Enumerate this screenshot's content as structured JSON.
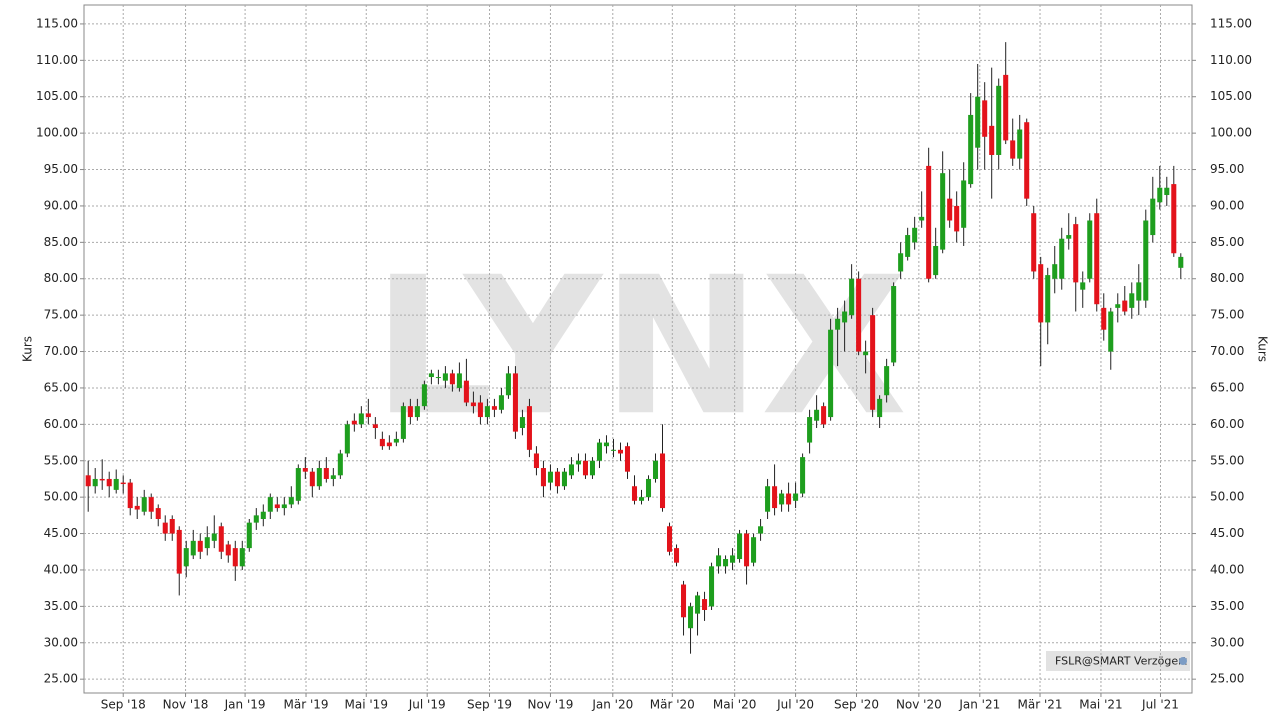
{
  "chart_data": {
    "type": "candlestick",
    "y_label": "Kurs",
    "watermark": "LYNX",
    "source_label": "FSLR@SMART Verzögert",
    "up_color": "#1e9e1e",
    "down_color": "#e3131b",
    "grid": true,
    "ylim": [
      23.1,
      117.6
    ],
    "yticks": [
      {
        "value": 25,
        "label": "25.00"
      },
      {
        "value": 30,
        "label": "30.00"
      },
      {
        "value": 35,
        "label": "35.00"
      },
      {
        "value": 40,
        "label": "40.00"
      },
      {
        "value": 45,
        "label": "45.00"
      },
      {
        "value": 50,
        "label": "50.00"
      },
      {
        "value": 55,
        "label": "55.00"
      },
      {
        "value": 60,
        "label": "60.00"
      },
      {
        "value": 65,
        "label": "65.00"
      },
      {
        "value": 70,
        "label": "70.00"
      },
      {
        "value": 75,
        "label": "75.00"
      },
      {
        "value": 80,
        "label": "80.00"
      },
      {
        "value": 85,
        "label": "85.00"
      },
      {
        "value": 90,
        "label": "90.00"
      },
      {
        "value": 95,
        "label": "95.00"
      },
      {
        "value": 100,
        "label": "100.00"
      },
      {
        "value": 105,
        "label": "105.00"
      },
      {
        "value": 110,
        "label": "110.00"
      },
      {
        "value": 115,
        "label": "115.00"
      }
    ],
    "xlim": [
      -0.6,
      157.6
    ],
    "xticks": [
      {
        "value": 5,
        "label": "Sep '18"
      },
      {
        "value": 13.9,
        "label": "Nov '18"
      },
      {
        "value": 22.4,
        "label": "Jan '19"
      },
      {
        "value": 31.1,
        "label": "Mär '19"
      },
      {
        "value": 39.7,
        "label": "Mai '19"
      },
      {
        "value": 48.4,
        "label": "Jul '19"
      },
      {
        "value": 57.3,
        "label": "Sep '19"
      },
      {
        "value": 66,
        "label": "Nov '19"
      },
      {
        "value": 74.9,
        "label": "Jan '20"
      },
      {
        "value": 83.4,
        "label": "Mär '20"
      },
      {
        "value": 92.3,
        "label": "Mai '20"
      },
      {
        "value": 101,
        "label": "Jul '20"
      },
      {
        "value": 109.7,
        "label": "Sep '20"
      },
      {
        "value": 118.6,
        "label": "Nov '20"
      },
      {
        "value": 127.3,
        "label": "Jan '21"
      },
      {
        "value": 135.9,
        "label": "Mär '21"
      },
      {
        "value": 144.6,
        "label": "Mai '21"
      },
      {
        "value": 153.1,
        "label": "Jul '21"
      }
    ],
    "ohlc": [
      [
        53,
        55,
        48,
        51.5
      ],
      [
        51.5,
        54,
        50.5,
        52.5
      ],
      [
        52.5,
        55.2,
        51,
        52.3
      ],
      [
        52.5,
        53.5,
        50,
        51.5
      ],
      [
        51,
        53.8,
        50.5,
        52.5
      ],
      [
        52,
        53,
        50.5,
        51.8
      ],
      [
        52,
        52.5,
        47.5,
        48.5
      ],
      [
        48.8,
        50,
        47,
        48.3
      ],
      [
        48,
        51,
        47.5,
        50
      ],
      [
        50,
        50.5,
        47,
        48
      ],
      [
        48.5,
        49,
        46,
        47
      ],
      [
        46.5,
        47.5,
        44,
        45
      ],
      [
        47,
        47.5,
        44,
        45
      ],
      [
        45.5,
        46,
        36.5,
        39.5
      ],
      [
        40.5,
        44,
        39,
        43
      ],
      [
        42,
        45.5,
        41.5,
        44
      ],
      [
        44,
        45,
        41.5,
        42.5
      ],
      [
        43,
        46,
        42,
        44.5
      ],
      [
        44,
        47.5,
        43,
        45
      ],
      [
        46,
        46.5,
        41.5,
        42.5
      ],
      [
        43.5,
        44,
        41,
        42
      ],
      [
        43,
        44,
        38.5,
        40.5
      ],
      [
        40.5,
        44,
        40,
        43
      ],
      [
        43,
        47,
        42.5,
        46.5
      ],
      [
        46.5,
        48.5,
        45.5,
        47.5
      ],
      [
        47,
        49,
        46,
        48
      ],
      [
        48,
        50.5,
        47,
        50
      ],
      [
        49,
        50,
        48,
        48.5
      ],
      [
        48.5,
        50,
        47.5,
        49
      ],
      [
        49,
        51.5,
        48.5,
        50
      ],
      [
        49.5,
        54.5,
        49,
        54
      ],
      [
        54,
        55.5,
        52.5,
        53.5
      ],
      [
        53.5,
        54,
        50,
        51.5
      ],
      [
        51.5,
        55,
        51,
        54
      ],
      [
        54,
        55.5,
        52,
        52.5
      ],
      [
        52.5,
        54,
        51.5,
        53
      ],
      [
        53,
        56.5,
        52.5,
        56
      ],
      [
        56,
        60.5,
        55.5,
        60
      ],
      [
        60.5,
        61.5,
        59,
        60
      ],
      [
        60,
        62.5,
        59.5,
        61.5
      ],
      [
        61.5,
        63.5,
        60,
        61
      ],
      [
        60,
        61,
        58,
        59.5
      ],
      [
        58,
        59,
        56.5,
        57
      ],
      [
        57.5,
        58.5,
        56.5,
        57
      ],
      [
        57.5,
        59,
        57,
        58
      ],
      [
        58,
        63,
        57.5,
        62.5
      ],
      [
        62.5,
        63.5,
        60,
        61
      ],
      [
        61,
        63.5,
        60.5,
        62.5
      ],
      [
        62.5,
        66,
        62,
        65.5
      ],
      [
        66.5,
        67.5,
        65.5,
        67
      ],
      [
        66.5,
        67.5,
        65.5,
        66.5
      ],
      [
        66,
        68,
        65,
        67
      ],
      [
        67,
        67.5,
        64.5,
        65.5
      ],
      [
        65,
        68.5,
        64.5,
        67
      ],
      [
        66,
        69,
        62.5,
        63
      ],
      [
        63,
        64.5,
        61.5,
        62.5
      ],
      [
        63,
        64,
        60,
        61
      ],
      [
        61,
        63.5,
        60,
        62.5
      ],
      [
        62.5,
        63.5,
        61,
        62
      ],
      [
        62,
        65,
        61.5,
        64
      ],
      [
        64,
        68,
        63.5,
        67
      ],
      [
        67,
        68,
        58,
        59
      ],
      [
        59.5,
        62,
        58.5,
        61
      ],
      [
        62.5,
        63.5,
        55.5,
        56.5
      ],
      [
        56,
        57,
        53,
        54
      ],
      [
        54,
        55,
        50,
        51.5
      ],
      [
        52,
        54.5,
        51,
        53.5
      ],
      [
        53.5,
        54,
        50.5,
        51.5
      ],
      [
        51.5,
        54,
        51,
        53.5
      ],
      [
        53,
        55.5,
        52.5,
        54.5
      ],
      [
        54.5,
        56,
        53.5,
        55
      ],
      [
        55,
        56,
        52.5,
        53
      ],
      [
        53,
        55.5,
        52.5,
        55
      ],
      [
        55,
        58,
        54,
        57.5
      ],
      [
        57,
        58.5,
        56,
        57.5
      ],
      [
        56.5,
        58,
        55.5,
        56.5
      ],
      [
        56.5,
        57.5,
        55,
        56
      ],
      [
        57,
        57.5,
        52.5,
        53.5
      ],
      [
        51.5,
        53,
        49,
        49.5
      ],
      [
        49.5,
        51,
        49,
        50
      ],
      [
        50,
        53,
        49.5,
        52.5
      ],
      [
        52.5,
        56,
        52,
        55
      ],
      [
        56,
        60,
        48,
        48.5
      ],
      [
        46,
        46.5,
        42,
        42.5
      ],
      [
        43,
        43.5,
        40.5,
        41
      ],
      [
        38,
        38.5,
        31,
        33.5
      ],
      [
        32,
        35.5,
        28.5,
        35
      ],
      [
        34,
        37,
        31,
        36.5
      ],
      [
        36,
        37,
        33,
        34.5
      ],
      [
        35,
        41,
        34.5,
        40.5
      ],
      [
        40.5,
        43,
        39.5,
        42
      ],
      [
        40.5,
        42,
        39.5,
        41.5
      ],
      [
        41,
        43,
        40,
        42
      ],
      [
        41.5,
        45.5,
        41,
        45
      ],
      [
        45,
        45.5,
        38,
        40.5
      ],
      [
        41,
        45,
        40.5,
        44.5
      ],
      [
        45,
        47,
        44,
        46
      ],
      [
        48,
        52.5,
        47,
        51.5
      ],
      [
        51.5,
        54.5,
        47.5,
        48.5
      ],
      [
        49,
        51,
        48,
        50.5
      ],
      [
        50.5,
        52,
        48,
        49
      ],
      [
        49.5,
        52,
        48.5,
        50.5
      ],
      [
        50.5,
        56,
        50,
        55.5
      ],
      [
        57.5,
        62,
        56,
        61
      ],
      [
        60.5,
        64,
        59.5,
        62
      ],
      [
        62.5,
        63,
        59.5,
        60
      ],
      [
        61,
        74.5,
        60.5,
        73
      ],
      [
        73,
        76,
        68,
        74.5
      ],
      [
        74,
        77,
        70,
        75.5
      ],
      [
        75,
        82,
        74.5,
        80
      ],
      [
        80,
        81,
        69.5,
        70
      ],
      [
        69.5,
        71.5,
        67,
        70
      ],
      [
        75,
        76,
        61,
        62
      ],
      [
        61,
        64,
        59.5,
        63.5
      ],
      [
        64,
        69,
        63,
        68
      ],
      [
        68.5,
        79.5,
        68,
        79
      ],
      [
        81,
        85,
        80,
        83.5
      ],
      [
        83,
        87,
        82.5,
        86
      ],
      [
        85,
        88.5,
        84,
        87
      ],
      [
        88,
        92,
        87,
        88.5
      ],
      [
        95.5,
        98,
        79.5,
        80
      ],
      [
        80.5,
        87,
        80,
        84.5
      ],
      [
        84,
        97.5,
        83.5,
        94.5
      ],
      [
        91,
        95,
        87,
        88
      ],
      [
        90,
        92,
        85,
        86.5
      ],
      [
        87,
        96,
        84.5,
        93.5
      ],
      [
        93,
        105.5,
        92.5,
        102.5
      ],
      [
        98,
        109.5,
        95,
        105
      ],
      [
        104.5,
        107,
        95,
        99.5
      ],
      [
        101,
        109,
        91,
        97
      ],
      [
        97,
        107.5,
        95,
        106.5
      ],
      [
        108,
        112.5,
        98.5,
        99
      ],
      [
        99,
        102,
        95.5,
        96.5
      ],
      [
        96.5,
        102.5,
        95,
        100.5
      ],
      [
        101.5,
        102,
        90,
        91
      ],
      [
        89,
        90,
        80,
        81
      ],
      [
        82,
        83,
        68,
        74
      ],
      [
        74,
        81.5,
        71,
        80.5
      ],
      [
        80,
        84.5,
        78,
        82
      ],
      [
        80,
        87,
        78.5,
        85.5
      ],
      [
        85.5,
        89,
        84,
        86
      ],
      [
        87.5,
        88.5,
        75.5,
        79.5
      ],
      [
        78.5,
        81,
        76,
        79.5
      ],
      [
        80,
        89,
        79.5,
        88
      ],
      [
        89,
        91,
        75.5,
        76.5
      ],
      [
        76,
        78,
        71.5,
        73
      ],
      [
        70,
        76,
        67.5,
        75.5
      ],
      [
        76,
        78,
        74,
        76.5
      ],
      [
        77,
        79,
        75,
        75.5
      ],
      [
        76,
        79.5,
        74.5,
        78
      ],
      [
        77,
        82,
        75,
        79.5
      ],
      [
        77,
        89.5,
        76,
        88
      ],
      [
        86,
        94,
        85,
        91
      ],
      [
        90.5,
        95.5,
        89.5,
        92.5
      ],
      [
        91.5,
        94,
        90,
        92.5
      ],
      [
        93,
        95.5,
        83,
        83.5
      ],
      [
        81.5,
        83.5,
        80,
        83
      ]
    ]
  }
}
